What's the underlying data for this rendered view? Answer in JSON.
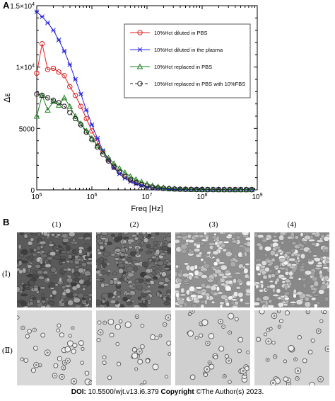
{
  "panel_a_label": "A",
  "panel_b_label": "B",
  "chart_data": {
    "type": "line",
    "title": "",
    "xlabel": "Freq [Hz]",
    "ylabel": "Δε",
    "x_scale": "log",
    "xlim": [
      100000,
      1000000000
    ],
    "ylim": [
      0,
      15000
    ],
    "grid": false,
    "legend_placement": "top-right",
    "x_tick_labels": [
      "10^5",
      "10^6",
      "10^7",
      "10^8",
      "10^9"
    ],
    "y_tick_labels": [
      "0",
      "5000",
      "1×10^4",
      "1.5×10^4"
    ],
    "y_ticks": [
      0,
      5000,
      10000,
      15000
    ],
    "series": [
      {
        "name": "10%Hct diluted in PBS",
        "color": "#e02020",
        "marker": "circle",
        "dashed": false,
        "x": [
          100000,
          125000,
          158000,
          200000,
          251000,
          316000,
          398000,
          501000,
          631000,
          794000,
          1000000,
          1259000,
          1585000,
          1995000,
          2512000,
          3162000,
          3981000,
          5012000,
          6310000,
          7943000,
          10000000,
          12590000,
          15850000,
          19950000,
          25120000,
          31620000,
          39810000,
          50120000,
          63100000,
          79430000,
          100000000,
          125900000,
          158500000,
          199500000,
          251200000,
          316200000,
          398100000,
          501200000,
          631000000,
          794300000
        ],
        "y": [
          9500,
          11900,
          9800,
          9900,
          9600,
          9300,
          8400,
          7700,
          6800,
          5800,
          4800,
          3900,
          3100,
          2450,
          1900,
          1450,
          1100,
          800,
          580,
          420,
          300,
          220,
          160,
          120,
          90,
          70,
          55,
          45,
          40,
          35,
          30,
          28,
          26,
          25,
          24,
          24,
          23,
          23,
          22,
          22
        ]
      },
      {
        "name": "10%Hct diluted in the plasma",
        "color": "#2020e0",
        "marker": "star",
        "dashed": false,
        "x": [
          100000,
          125000,
          158000,
          200000,
          251000,
          316000,
          398000,
          501000,
          631000,
          794000,
          1000000,
          1259000,
          1585000,
          1995000,
          2512000,
          3162000,
          3981000,
          5012000,
          6310000,
          7943000,
          10000000,
          12590000,
          15850000,
          19950000,
          25120000,
          31620000,
          39810000,
          50120000,
          63100000,
          79430000,
          100000000,
          125900000,
          158500000,
          199500000,
          251200000,
          316200000,
          398100000,
          501200000,
          631000000,
          794300000
        ],
        "y": [
          14500,
          14100,
          13600,
          13000,
          12200,
          11300,
          10200,
          9000,
          7800,
          6500,
          5300,
          4200,
          3200,
          2450,
          1800,
          1300,
          950,
          680,
          480,
          340,
          240,
          170,
          120,
          85,
          65,
          50,
          40,
          32,
          28,
          25,
          22,
          20,
          19,
          18,
          18,
          17,
          17,
          17,
          16,
          16
        ]
      },
      {
        "name": "10%Hct replaced in PBS",
        "color": "#208020",
        "marker": "triangle",
        "dashed": false,
        "x": [
          100000,
          125000,
          158000,
          200000,
          251000,
          316000,
          398000,
          501000,
          631000,
          794000,
          1000000,
          1259000,
          1585000,
          1995000,
          2512000,
          3162000,
          3981000,
          5012000,
          6310000,
          7943000,
          10000000,
          12590000,
          15850000,
          19950000,
          25120000,
          31620000,
          39810000,
          50120000,
          63100000,
          79430000,
          100000000,
          125900000,
          158500000,
          199500000,
          251200000,
          316200000,
          398100000,
          501200000,
          631000000,
          794300000
        ],
        "y": [
          6000,
          7700,
          6500,
          7200,
          6900,
          7500,
          6800,
          6000,
          5400,
          4800,
          4200,
          3600,
          3100,
          2600,
          2150,
          1750,
          1400,
          1100,
          850,
          650,
          480,
          350,
          250,
          180,
          130,
          95,
          70,
          55,
          45,
          38,
          32,
          28,
          26,
          24,
          23,
          22,
          22,
          21,
          21,
          20
        ]
      },
      {
        "name": "10%Hct replaced in PBS with 10%FBS",
        "color": "#202020",
        "marker": "circle",
        "dashed": true,
        "x": [
          100000,
          125000,
          158000,
          200000,
          251000,
          316000,
          398000,
          501000,
          631000,
          794000,
          1000000,
          1259000,
          1585000,
          1995000,
          2512000,
          3162000,
          3981000,
          5012000,
          6310000,
          7943000,
          10000000,
          12590000,
          15850000,
          19950000,
          25120000,
          31620000,
          39810000,
          50120000,
          63100000,
          79430000,
          100000000,
          125900000,
          158500000,
          199500000,
          251200000,
          316200000,
          398100000,
          501200000,
          631000000,
          794300000
        ],
        "y": [
          7800,
          7700,
          7500,
          7300,
          7100,
          6800,
          6300,
          5800,
          5300,
          4700,
          4100,
          3500,
          2900,
          2350,
          1850,
          1450,
          1100,
          820,
          600,
          440,
          320,
          230,
          165,
          120,
          90,
          68,
          52,
          42,
          35,
          30,
          26,
          24,
          22,
          21,
          20,
          20,
          19,
          19,
          19,
          18
        ]
      }
    ]
  },
  "panel_b": {
    "columns": [
      "(1)",
      "(2)",
      "(3)",
      "(4)"
    ],
    "rows": [
      "(Ⅰ)",
      "(Ⅱ)"
    ]
  },
  "footer": {
    "doi_label": "DOI:",
    "doi_value": "10.5500/wjt.v13.i6.379",
    "copyright_label": "Copyright",
    "copyright_value": "©The Author(s) 2023."
  }
}
